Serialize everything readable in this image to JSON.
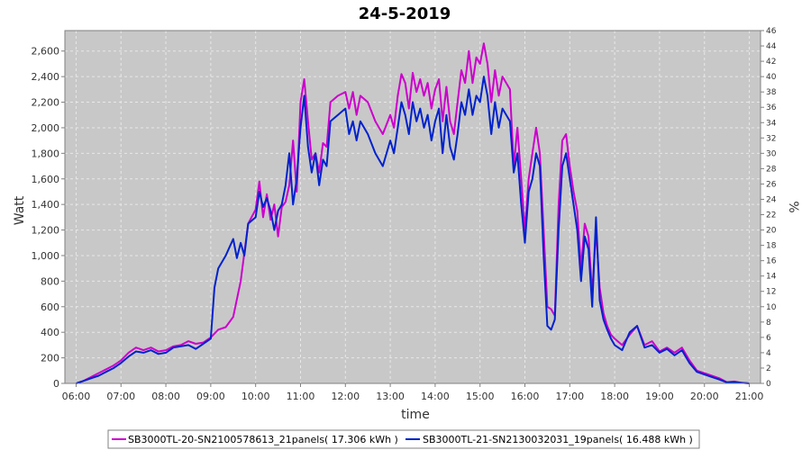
{
  "chart_data": {
    "type": "line",
    "title": "24-5-2019",
    "xlabel": "time",
    "ylabel": "Watt",
    "y2label": "%",
    "xlim": [
      "05:45",
      "21:15"
    ],
    "ylim": [
      0,
      2760
    ],
    "y2lim": [
      0,
      46
    ],
    "x_ticks": [
      "06:00",
      "07:00",
      "08:00",
      "09:00",
      "10:00",
      "11:00",
      "12:00",
      "13:00",
      "14:00",
      "15:00",
      "16:00",
      "17:00",
      "18:00",
      "19:00",
      "20:00",
      "21:00"
    ],
    "y_ticks": [
      0,
      200,
      400,
      600,
      800,
      1000,
      1200,
      1400,
      1600,
      1800,
      2000,
      2200,
      2400,
      2600
    ],
    "y_tick_labels": [
      "0",
      "200",
      "400",
      "600",
      "800",
      "1,000",
      "1,200",
      "1,400",
      "1,600",
      "1,800",
      "2,000",
      "2,200",
      "2,400",
      "2,600"
    ],
    "y2_ticks": [
      0,
      2,
      4,
      6,
      8,
      10,
      12,
      14,
      16,
      18,
      20,
      22,
      24,
      26,
      28,
      30,
      32,
      34,
      36,
      38,
      40,
      42,
      44,
      46
    ],
    "grid": true,
    "legend_position": "bottom",
    "colors": {
      "plot_background": "#c8c8c8",
      "grid": "#e8e8e8"
    },
    "series": [
      {
        "name": "SB3000TL-20-SN2100578613_21panels( 17.306 kWh )",
        "color": "#cc00cc",
        "points": [
          [
            "06:00",
            0
          ],
          [
            "06:10",
            20
          ],
          [
            "06:20",
            50
          ],
          [
            "06:30",
            80
          ],
          [
            "06:40",
            110
          ],
          [
            "06:50",
            140
          ],
          [
            "07:00",
            180
          ],
          [
            "07:10",
            240
          ],
          [
            "07:20",
            280
          ],
          [
            "07:30",
            260
          ],
          [
            "07:40",
            280
          ],
          [
            "07:50",
            250
          ],
          [
            "08:00",
            260
          ],
          [
            "08:10",
            290
          ],
          [
            "08:20",
            300
          ],
          [
            "08:30",
            330
          ],
          [
            "08:40",
            310
          ],
          [
            "08:50",
            320
          ],
          [
            "09:00",
            360
          ],
          [
            "09:10",
            420
          ],
          [
            "09:20",
            440
          ],
          [
            "09:30",
            520
          ],
          [
            "09:40",
            800
          ],
          [
            "09:50",
            1250
          ],
          [
            "10:00",
            1360
          ],
          [
            "10:05",
            1580
          ],
          [
            "10:10",
            1300
          ],
          [
            "10:15",
            1480
          ],
          [
            "10:20",
            1280
          ],
          [
            "10:25",
            1400
          ],
          [
            "10:30",
            1150
          ],
          [
            "10:35",
            1380
          ],
          [
            "10:40",
            1420
          ],
          [
            "10:45",
            1550
          ],
          [
            "10:50",
            1900
          ],
          [
            "10:55",
            1500
          ],
          [
            "11:00",
            2200
          ],
          [
            "11:05",
            2380
          ],
          [
            "11:10",
            2050
          ],
          [
            "11:15",
            1750
          ],
          [
            "11:20",
            1800
          ],
          [
            "11:25",
            1650
          ],
          [
            "11:30",
            1880
          ],
          [
            "11:35",
            1850
          ],
          [
            "11:40",
            2200
          ],
          [
            "11:50",
            2250
          ],
          [
            "12:00",
            2280
          ],
          [
            "12:05",
            2150
          ],
          [
            "12:10",
            2280
          ],
          [
            "12:15",
            2100
          ],
          [
            "12:20",
            2250
          ],
          [
            "12:30",
            2200
          ],
          [
            "12:40",
            2050
          ],
          [
            "12:50",
            1950
          ],
          [
            "13:00",
            2100
          ],
          [
            "13:05",
            2000
          ],
          [
            "13:10",
            2250
          ],
          [
            "13:15",
            2420
          ],
          [
            "13:20",
            2350
          ],
          [
            "13:25",
            2150
          ],
          [
            "13:30",
            2430
          ],
          [
            "13:35",
            2280
          ],
          [
            "13:40",
            2380
          ],
          [
            "13:45",
            2250
          ],
          [
            "13:50",
            2350
          ],
          [
            "13:55",
            2150
          ],
          [
            "14:00",
            2300
          ],
          [
            "14:05",
            2380
          ],
          [
            "14:10",
            2050
          ],
          [
            "14:15",
            2320
          ],
          [
            "14:20",
            2050
          ],
          [
            "14:25",
            1950
          ],
          [
            "14:30",
            2200
          ],
          [
            "14:35",
            2450
          ],
          [
            "14:40",
            2350
          ],
          [
            "14:45",
            2600
          ],
          [
            "14:50",
            2350
          ],
          [
            "14:55",
            2550
          ],
          [
            "15:00",
            2500
          ],
          [
            "15:05",
            2660
          ],
          [
            "15:10",
            2500
          ],
          [
            "15:15",
            2200
          ],
          [
            "15:20",
            2450
          ],
          [
            "15:25",
            2250
          ],
          [
            "15:30",
            2400
          ],
          [
            "15:35",
            2350
          ],
          [
            "15:40",
            2300
          ],
          [
            "15:45",
            1700
          ],
          [
            "15:50",
            2000
          ],
          [
            "15:55",
            1600
          ],
          [
            "16:00",
            1200
          ],
          [
            "16:05",
            1600
          ],
          [
            "16:10",
            1800
          ],
          [
            "16:15",
            2000
          ],
          [
            "16:20",
            1800
          ],
          [
            "16:25",
            1200
          ],
          [
            "16:30",
            600
          ],
          [
            "16:35",
            580
          ],
          [
            "16:40",
            530
          ],
          [
            "16:45",
            1400
          ],
          [
            "16:50",
            1900
          ],
          [
            "16:55",
            1950
          ],
          [
            "17:00",
            1700
          ],
          [
            "17:05",
            1500
          ],
          [
            "17:10",
            1350
          ],
          [
            "17:15",
            900
          ],
          [
            "17:20",
            1250
          ],
          [
            "17:25",
            1150
          ],
          [
            "17:30",
            700
          ],
          [
            "17:35",
            1200
          ],
          [
            "17:40",
            750
          ],
          [
            "17:45",
            550
          ],
          [
            "17:50",
            450
          ],
          [
            "17:55",
            380
          ],
          [
            "18:00",
            350
          ],
          [
            "18:10",
            300
          ],
          [
            "18:20",
            380
          ],
          [
            "18:30",
            450
          ],
          [
            "18:40",
            300
          ],
          [
            "18:50",
            330
          ],
          [
            "19:00",
            250
          ],
          [
            "19:10",
            280
          ],
          [
            "19:20",
            240
          ],
          [
            "19:30",
            280
          ],
          [
            "19:40",
            180
          ],
          [
            "19:50",
            100
          ],
          [
            "20:00",
            80
          ],
          [
            "20:10",
            60
          ],
          [
            "20:20",
            40
          ],
          [
            "20:30",
            10
          ],
          [
            "20:40",
            15
          ],
          [
            "20:50",
            5
          ],
          [
            "21:00",
            0
          ]
        ]
      },
      {
        "name": "SB3000TL-21-SN2130032031_19panels( 16.488 kWh )",
        "color": "#0022cc",
        "points": [
          [
            "06:00",
            0
          ],
          [
            "06:10",
            20
          ],
          [
            "06:20",
            40
          ],
          [
            "06:30",
            60
          ],
          [
            "06:40",
            90
          ],
          [
            "06:50",
            120
          ],
          [
            "07:00",
            160
          ],
          [
            "07:10",
            210
          ],
          [
            "07:20",
            250
          ],
          [
            "07:30",
            240
          ],
          [
            "07:40",
            260
          ],
          [
            "07:50",
            230
          ],
          [
            "08:00",
            240
          ],
          [
            "08:10",
            280
          ],
          [
            "08:20",
            290
          ],
          [
            "08:30",
            300
          ],
          [
            "08:40",
            270
          ],
          [
            "08:50",
            310
          ],
          [
            "09:00",
            350
          ],
          [
            "09:05",
            750
          ],
          [
            "09:10",
            900
          ],
          [
            "09:20",
            1000
          ],
          [
            "09:30",
            1130
          ],
          [
            "09:35",
            980
          ],
          [
            "09:40",
            1100
          ],
          [
            "09:45",
            1000
          ],
          [
            "09:50",
            1250
          ],
          [
            "10:00",
            1300
          ],
          [
            "10:05",
            1500
          ],
          [
            "10:10",
            1380
          ],
          [
            "10:15",
            1450
          ],
          [
            "10:20",
            1350
          ],
          [
            "10:25",
            1200
          ],
          [
            "10:30",
            1350
          ],
          [
            "10:35",
            1400
          ],
          [
            "10:40",
            1550
          ],
          [
            "10:45",
            1800
          ],
          [
            "10:50",
            1400
          ],
          [
            "10:55",
            1600
          ],
          [
            "11:00",
            2000
          ],
          [
            "11:05",
            2250
          ],
          [
            "11:10",
            1850
          ],
          [
            "11:15",
            1650
          ],
          [
            "11:20",
            1800
          ],
          [
            "11:25",
            1550
          ],
          [
            "11:30",
            1750
          ],
          [
            "11:35",
            1700
          ],
          [
            "11:40",
            2050
          ],
          [
            "11:50",
            2100
          ],
          [
            "12:00",
            2150
          ],
          [
            "12:05",
            1950
          ],
          [
            "12:10",
            2050
          ],
          [
            "12:15",
            1900
          ],
          [
            "12:20",
            2050
          ],
          [
            "12:30",
            1950
          ],
          [
            "12:40",
            1800
          ],
          [
            "12:50",
            1700
          ],
          [
            "13:00",
            1900
          ],
          [
            "13:05",
            1800
          ],
          [
            "13:10",
            2000
          ],
          [
            "13:15",
            2200
          ],
          [
            "13:20",
            2100
          ],
          [
            "13:25",
            1950
          ],
          [
            "13:30",
            2200
          ],
          [
            "13:35",
            2050
          ],
          [
            "13:40",
            2150
          ],
          [
            "13:45",
            2000
          ],
          [
            "13:50",
            2100
          ],
          [
            "13:55",
            1900
          ],
          [
            "14:00",
            2050
          ],
          [
            "14:05",
            2150
          ],
          [
            "14:10",
            1800
          ],
          [
            "14:15",
            2100
          ],
          [
            "14:20",
            1850
          ],
          [
            "14:25",
            1750
          ],
          [
            "14:30",
            1950
          ],
          [
            "14:35",
            2200
          ],
          [
            "14:40",
            2100
          ],
          [
            "14:45",
            2300
          ],
          [
            "14:50",
            2100
          ],
          [
            "14:55",
            2250
          ],
          [
            "15:00",
            2200
          ],
          [
            "15:05",
            2400
          ],
          [
            "15:10",
            2250
          ],
          [
            "15:15",
            1950
          ],
          [
            "15:20",
            2200
          ],
          [
            "15:25",
            2000
          ],
          [
            "15:30",
            2150
          ],
          [
            "15:35",
            2100
          ],
          [
            "15:40",
            2050
          ],
          [
            "15:45",
            1650
          ],
          [
            "15:50",
            1800
          ],
          [
            "15:55",
            1400
          ],
          [
            "16:00",
            1100
          ],
          [
            "16:05",
            1500
          ],
          [
            "16:10",
            1600
          ],
          [
            "16:15",
            1800
          ],
          [
            "16:20",
            1700
          ],
          [
            "16:25",
            1000
          ],
          [
            "16:30",
            450
          ],
          [
            "16:35",
            420
          ],
          [
            "16:40",
            500
          ],
          [
            "16:45",
            1200
          ],
          [
            "16:50",
            1700
          ],
          [
            "16:55",
            1800
          ],
          [
            "17:00",
            1600
          ],
          [
            "17:05",
            1400
          ],
          [
            "17:10",
            1200
          ],
          [
            "17:15",
            800
          ],
          [
            "17:20",
            1150
          ],
          [
            "17:25",
            1050
          ],
          [
            "17:30",
            600
          ],
          [
            "17:35",
            1300
          ],
          [
            "17:40",
            650
          ],
          [
            "17:45",
            500
          ],
          [
            "17:50",
            420
          ],
          [
            "17:55",
            350
          ],
          [
            "18:00",
            300
          ],
          [
            "18:10",
            260
          ],
          [
            "18:20",
            400
          ],
          [
            "18:30",
            450
          ],
          [
            "18:40",
            280
          ],
          [
            "18:50",
            300
          ],
          [
            "19:00",
            240
          ],
          [
            "19:10",
            270
          ],
          [
            "19:20",
            220
          ],
          [
            "19:30",
            260
          ],
          [
            "19:40",
            160
          ],
          [
            "19:50",
            90
          ],
          [
            "20:00",
            70
          ],
          [
            "20:10",
            50
          ],
          [
            "20:20",
            30
          ],
          [
            "20:30",
            8
          ],
          [
            "20:40",
            10
          ],
          [
            "20:50",
            4
          ],
          [
            "21:00",
            0
          ]
        ]
      }
    ]
  }
}
